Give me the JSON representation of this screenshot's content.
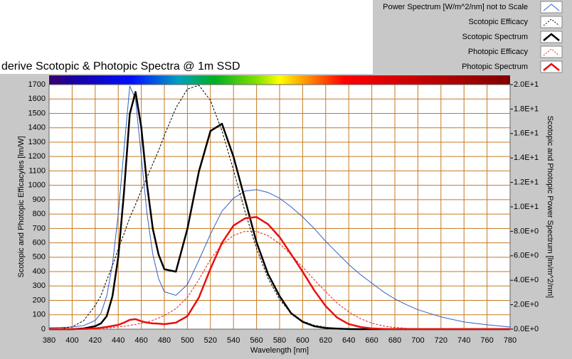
{
  "chart_data": {
    "type": "line",
    "title": "derive Scotopic & Photopic Spectra @ 1m SSD",
    "x_label": "Wavelength [nm]",
    "y_label": "Scotopic and Photopic Efficacyies [lm/W]",
    "y2_label": "Scotopic and Photopic Power Spectrum [lm/m^2/nm]",
    "x": [
      380,
      390,
      400,
      410,
      420,
      425,
      430,
      435,
      440,
      445,
      450,
      455,
      460,
      465,
      470,
      475,
      480,
      490,
      500,
      510,
      520,
      530,
      540,
      550,
      560,
      570,
      580,
      590,
      600,
      610,
      620,
      630,
      640,
      650,
      660,
      670,
      680,
      690,
      700,
      720,
      740,
      760,
      780
    ],
    "xlim": [
      380,
      780
    ],
    "xticks": [
      380,
      400,
      420,
      440,
      460,
      480,
      500,
      520,
      540,
      560,
      580,
      600,
      620,
      640,
      660,
      680,
      700,
      720,
      740,
      760,
      780
    ],
    "ylim": [
      0,
      1700
    ],
    "yticks": [
      0,
      100,
      200,
      300,
      400,
      500,
      600,
      700,
      800,
      900,
      1000,
      1100,
      1200,
      1300,
      1400,
      1500,
      1600,
      1700
    ],
    "y2lim": [
      0,
      20
    ],
    "y2ticks": [
      {
        "value": 0,
        "label": "0.0E+0"
      },
      {
        "value": 2,
        "label": "2.0E+0"
      },
      {
        "value": 4,
        "label": "4.0E+0"
      },
      {
        "value": 6,
        "label": "6.0E+0"
      },
      {
        "value": 8,
        "label": "8.0E+0"
      },
      {
        "value": 10,
        "label": "1.0E+1"
      },
      {
        "value": 12,
        "label": "1.2E+1"
      },
      {
        "value": 14,
        "label": "1.4E+1"
      },
      {
        "value": 16,
        "label": "1.6E+1"
      },
      {
        "value": 18,
        "label": "1.8E+1"
      },
      {
        "value": 20,
        "label": "2.0E+1"
      }
    ],
    "grid": true,
    "legend": "top-right",
    "series": [
      {
        "name": "Power Spectrum [W/m^2/nm] not to Scale",
        "color": "#2f5fc8",
        "line_width": 1,
        "dashed": false,
        "values": [
          10,
          12,
          15,
          25,
          60,
          110,
          230,
          450,
          800,
          1250,
          1690,
          1600,
          1200,
          800,
          520,
          350,
          260,
          235,
          310,
          480,
          660,
          820,
          910,
          960,
          970,
          950,
          910,
          850,
          780,
          700,
          610,
          530,
          450,
          380,
          320,
          260,
          210,
          170,
          135,
          85,
          50,
          30,
          15
        ]
      },
      {
        "name": "Scotopic Efficacy",
        "color": "#000000",
        "line_width": 1,
        "dashed": true,
        "values": [
          1,
          4,
          16,
          59,
          164,
          233,
          340,
          442,
          558,
          663,
          774,
          867,
          964,
          1054,
          1149,
          1241,
          1348,
          1537,
          1669,
          1695,
          1590,
          1379,
          1105,
          818,
          559,
          353,
          206,
          111,
          56,
          27,
          13,
          6,
          3,
          1,
          1,
          0,
          0,
          0,
          0,
          0,
          0,
          0,
          0
        ]
      },
      {
        "name": "Scotopic Spectrum",
        "color": "#000000",
        "line_width": 2.5,
        "dashed": false,
        "axis": "y2",
        "values": [
          0,
          0,
          0,
          0.06,
          0.24,
          0.47,
          1.06,
          2.7,
          5.88,
          11.2,
          17.6,
          19.4,
          16.5,
          11.8,
          8.2,
          6.1,
          4.9,
          4.7,
          8.2,
          12.9,
          16.2,
          16.8,
          14.1,
          10.6,
          7.1,
          4.5,
          2.7,
          1.3,
          0.6,
          0.24,
          0.09,
          0.04,
          0.01,
          0,
          0,
          0,
          0,
          0,
          0,
          0,
          0,
          0,
          0
        ]
      },
      {
        "name": "Photopic Efficacy",
        "color": "#e02020",
        "line_width": 1,
        "dashed": true,
        "values": [
          0,
          0,
          0,
          1,
          3,
          5,
          8,
          11,
          16,
          20,
          26,
          33,
          41,
          50,
          62,
          77,
          95,
          142,
          221,
          344,
          485,
          589,
          652,
          680,
          680,
          650,
          594,
          517,
          431,
          344,
          260,
          181,
          120,
          73,
          42,
          22,
          12,
          6,
          3,
          1,
          0,
          0,
          0
        ]
      },
      {
        "name": "Photopic Spectrum",
        "color": "#e81010",
        "line_width": 2.5,
        "dashed": false,
        "axis": "y2",
        "values": [
          0,
          0,
          0,
          0.02,
          0.06,
          0.12,
          0.18,
          0.26,
          0.35,
          0.53,
          0.76,
          0.82,
          0.65,
          0.53,
          0.47,
          0.45,
          0.41,
          0.53,
          1.06,
          2.59,
          4.94,
          7.06,
          8.47,
          9.06,
          9.17,
          8.58,
          7.53,
          6.12,
          4.7,
          3.18,
          1.88,
          0.94,
          0.41,
          0.18,
          0.06,
          0.02,
          0.01,
          0,
          0,
          0,
          0,
          0,
          0
        ]
      }
    ]
  }
}
